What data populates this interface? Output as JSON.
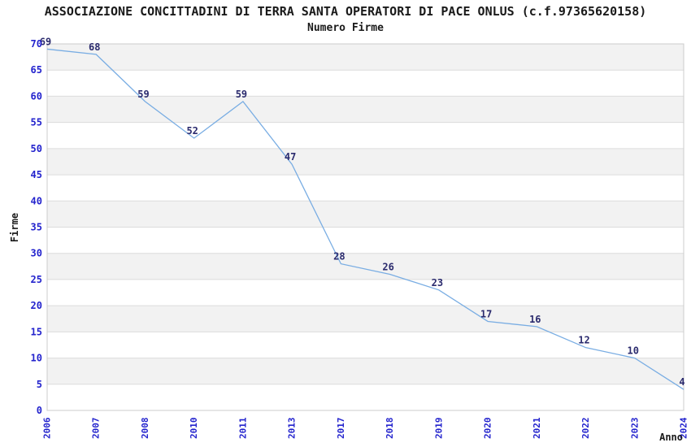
{
  "header": {
    "title": "ASSOCIAZIONE CONCITTADINI DI TERRA SANTA OPERATORI DI PACE ONLUS (c.f.97365620158)",
    "subtitle": "Numero Firme"
  },
  "chart_data": {
    "type": "line",
    "title": "ASSOCIAZIONE CONCITTADINI DI TERRA SANTA OPERATORI DI PACE ONLUS (c.f.97365620158)",
    "subtitle": "Numero Firme",
    "xlabel": "Anno",
    "ylabel": "Firme",
    "categories": [
      "2006",
      "2007",
      "2008",
      "2010",
      "2011",
      "2013",
      "2017",
      "2018",
      "2019",
      "2020",
      "2021",
      "2022",
      "2023",
      "2024"
    ],
    "values": [
      69,
      68,
      59,
      52,
      59,
      47,
      28,
      26,
      23,
      17,
      16,
      12,
      10,
      4
    ],
    "ylim": [
      0,
      70
    ],
    "ytick_step": 5,
    "ytick_labels": [
      "0",
      "5",
      "10",
      "15",
      "20",
      "25",
      "30",
      "35",
      "40",
      "45",
      "50",
      "55",
      "60",
      "65",
      "70"
    ],
    "grid": true,
    "legend": "none",
    "band_pattern": "alternating horizontal bands, gray on 5-10, 15-20, 25-30, 35-40, 45-50, 55-60, 65-70",
    "colors": {
      "line": "#79ade3",
      "tick_label": "#2323cd",
      "value_label": "#2b2b6e",
      "band": "#f2f2f2",
      "gridline": "#dcdcdc",
      "border": "#cccccc",
      "text": "#1a1a1a",
      "background": "#ffffff"
    }
  }
}
